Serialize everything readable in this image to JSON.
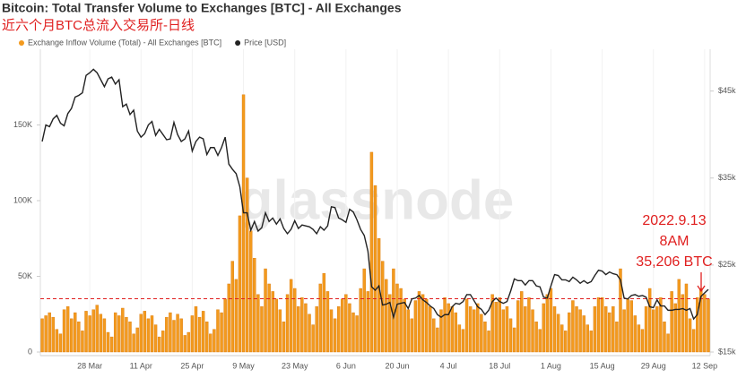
{
  "chart_data": {
    "type": "bar-line",
    "title": "Bitcoin: Total Transfer Volume to Exchanges [BTC] - All Exchanges",
    "subtitle": "近六个月BTC总流入交易所-日线",
    "watermark": "glassnode",
    "categories": [
      null,
      null,
      null,
      null,
      null,
      null,
      null,
      null,
      null,
      null,
      null,
      null,
      null,
      "28 Mar",
      null,
      null,
      null,
      null,
      null,
      null,
      null,
      null,
      null,
      null,
      null,
      null,
      null,
      "11 Apr",
      null,
      null,
      null,
      null,
      null,
      null,
      null,
      null,
      null,
      null,
      null,
      null,
      null,
      "25 Apr",
      null,
      null,
      null,
      null,
      null,
      null,
      null,
      null,
      null,
      null,
      null,
      null,
      null,
      "9 May",
      null,
      null,
      null,
      null,
      null,
      null,
      null,
      null,
      null,
      null,
      null,
      null,
      null,
      "23 May",
      null,
      null,
      null,
      null,
      null,
      null,
      null,
      null,
      null,
      null,
      null,
      null,
      null,
      "6 Jun",
      null,
      null,
      null,
      null,
      null,
      null,
      null,
      null,
      null,
      null,
      null,
      null,
      null,
      "20 Jun",
      null,
      null,
      null,
      null,
      null,
      null,
      null,
      null,
      null,
      null,
      null,
      null,
      null,
      "4 Jul",
      null,
      null,
      null,
      null,
      null,
      null,
      null,
      null,
      null,
      null,
      null,
      null,
      null,
      "18 Jul",
      null,
      null,
      null,
      null,
      null,
      null,
      null,
      null,
      null,
      null,
      null,
      null,
      null,
      "1 Aug",
      null,
      null,
      null,
      null,
      null,
      null,
      null,
      null,
      null,
      null,
      null,
      null,
      null,
      "15 Aug",
      null,
      null,
      null,
      null,
      null,
      null,
      null,
      null,
      null,
      null,
      null,
      null,
      null,
      "29 Aug",
      null,
      null,
      null,
      null,
      null,
      null,
      null,
      null,
      null,
      null,
      null,
      null,
      null,
      "12 Sep",
      null
    ],
    "series": [
      {
        "name": "Exchange Inflow Volume (Total) - All Exchanges [BTC]",
        "color": "#f39a1e",
        "type": "bar",
        "values": [
          22000,
          24000,
          26000,
          23000,
          15000,
          12000,
          28000,
          30000,
          22000,
          26000,
          20000,
          14000,
          27000,
          24000,
          28000,
          31000,
          25000,
          22000,
          13000,
          10000,
          26000,
          24000,
          29000,
          23000,
          20000,
          12000,
          16000,
          25000,
          27000,
          22000,
          24000,
          18000,
          10000,
          14000,
          23000,
          26000,
          21000,
          25000,
          22000,
          11000,
          13000,
          24000,
          30000,
          23000,
          27000,
          20000,
          12000,
          15000,
          28000,
          26000,
          35000,
          45000,
          60000,
          48000,
          90000,
          170000,
          115000,
          80000,
          62000,
          38000,
          30000,
          55000,
          45000,
          40000,
          35000,
          28000,
          20000,
          38000,
          48000,
          42000,
          30000,
          36000,
          32000,
          25000,
          18000,
          30000,
          45000,
          52000,
          40000,
          28000,
          22000,
          30000,
          35000,
          38000,
          32000,
          26000,
          24000,
          42000,
          55000,
          40000,
          132000,
          110000,
          75000,
          60000,
          48000,
          38000,
          55000,
          45000,
          42000,
          35000,
          28000,
          22000,
          34000,
          40000,
          38000,
          35000,
          30000,
          22000,
          16000,
          28000,
          36000,
          32000,
          30000,
          26000,
          18000,
          15000,
          35000,
          30000,
          28000,
          32000,
          25000,
          20000,
          14000,
          38000,
          33000,
          36000,
          28000,
          30000,
          22000,
          16000,
          34000,
          40000,
          30000,
          36000,
          28000,
          20000,
          15000,
          32000,
          38000,
          42000,
          30000,
          25000,
          18000,
          14000,
          26000,
          34000,
          30000,
          28000,
          24000,
          18000,
          14000,
          30000,
          36000,
          36000,
          30000,
          26000,
          30000,
          20000,
          55000,
          28000,
          35000,
          34000,
          24000,
          18000,
          15000,
          30000,
          42000,
          28000,
          30000,
          36000,
          20000,
          12000,
          40000,
          32000,
          48000,
          38000,
          45000,
          22000,
          15000,
          36000,
          42000,
          38000,
          35000
        ]
      },
      {
        "name": "Price [USD]",
        "color": "#222222",
        "type": "line",
        "axis": "y2",
        "values": [
          39200,
          41100,
          40900,
          41800,
          42200,
          41300,
          41000,
          42400,
          43000,
          44300,
          44500,
          44800,
          46800,
          47100,
          47500,
          47100,
          46300,
          45500,
          46400,
          46600,
          45800,
          46300,
          43200,
          43500,
          42300,
          42800,
          40400,
          39700,
          40100,
          41100,
          41500,
          39900,
          40600,
          40000,
          39400,
          39500,
          41400,
          40000,
          39200,
          39500,
          40400,
          38100,
          39200,
          39700,
          39500,
          37700,
          38500,
          38500,
          37600,
          38500,
          39700,
          36600,
          36000,
          35500,
          34000,
          31000,
          31000,
          29000,
          30000,
          28900,
          29300,
          31000,
          30000,
          30400,
          29700,
          30300,
          29200,
          28600,
          29100,
          30100,
          29200,
          29600,
          29500,
          29400,
          29100,
          28600,
          29400,
          29000,
          29500,
          31700,
          31600,
          30400,
          30200,
          29900,
          31400,
          31100,
          30200,
          29100,
          28400,
          26600,
          22500,
          22100,
          22600,
          20400,
          20500,
          20700,
          19000,
          20500,
          20600,
          20700,
          20000,
          21100,
          21200,
          21500,
          21000,
          20700,
          20300,
          20000,
          19300,
          19000,
          19300,
          19300,
          20200,
          20600,
          20500,
          20800,
          21600,
          21600,
          20900,
          20200,
          19900,
          19300,
          19800,
          20800,
          21200,
          20800,
          20600,
          20800,
          22000,
          23400,
          23200,
          23200,
          22700,
          23200,
          23200,
          22600,
          22500,
          21300,
          21200,
          22600,
          23900,
          23800,
          23300,
          23300,
          23100,
          23600,
          23300,
          22900,
          23200,
          22900,
          23100,
          23800,
          24400,
          24300,
          23900,
          24200,
          24000,
          23900,
          23300,
          21200,
          21100,
          21500,
          21600,
          21400,
          21500,
          21300,
          20200,
          20100,
          21000,
          20300,
          20300,
          19800,
          19800,
          19900,
          19900,
          20000,
          19800,
          20000,
          18800,
          19300,
          21400,
          21800,
          22200
        ]
      }
    ],
    "ylim": [
      0,
      200000
    ],
    "yticks": [
      0,
      {
        "value": 50000,
        "label": "50K"
      },
      {
        "value": 100000,
        "label": "100K"
      },
      {
        "value": 150000,
        "label": "150K"
      }
    ],
    "y2lim": [
      15000,
      49800
    ],
    "y2ticks": [
      {
        "value": 15000,
        "label": "$15k"
      },
      {
        "value": 25000,
        "label": "$25k"
      },
      {
        "value": 35000,
        "label": "$35k"
      },
      {
        "value": 45000,
        "label": "$45k"
      }
    ],
    "annotation": {
      "date": "2022.9.13",
      "time": "8AM",
      "value": 35206,
      "label": "35,206 BTC",
      "color": "#e02020"
    },
    "grid": true
  }
}
